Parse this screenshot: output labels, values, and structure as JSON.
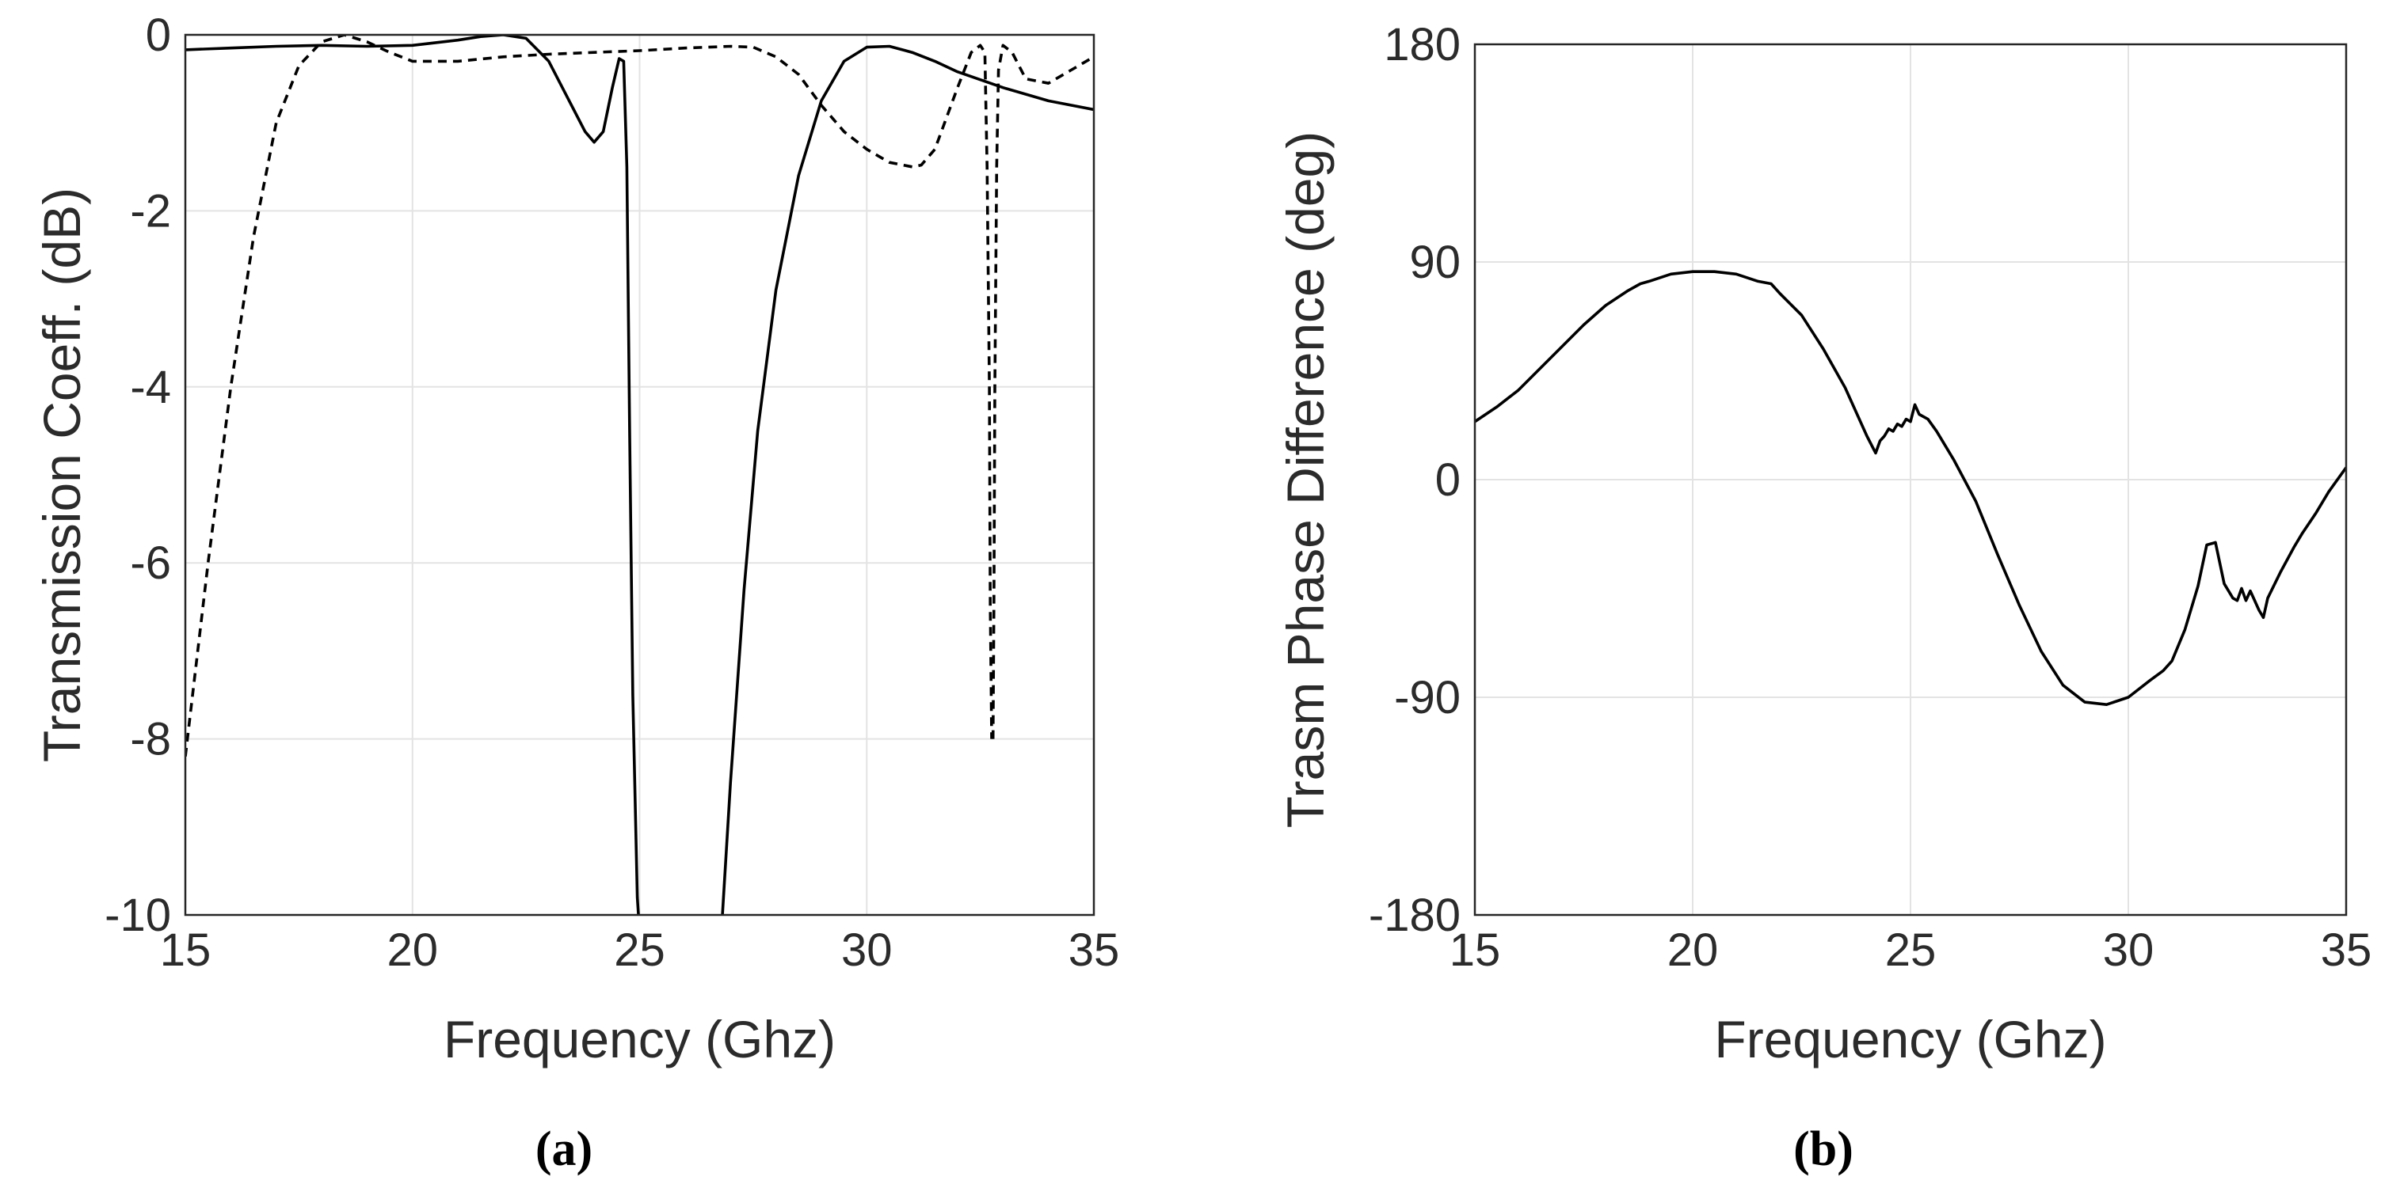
{
  "chart_data": [
    {
      "type": "line",
      "panel_label": "(a)",
      "title": "",
      "xlabel": "Frequency (Ghz)",
      "ylabel": "Transmission Coeff. (dB)",
      "xlim": [
        15,
        35
      ],
      "ylim": [
        -10,
        0
      ],
      "xticks": [
        15,
        20,
        25,
        30,
        35
      ],
      "yticks": [
        -10,
        -8,
        -6,
        -4,
        -2,
        0
      ],
      "grid": true,
      "series": [
        {
          "name": "solid",
          "style": "solid",
          "x": [
            15,
            16,
            17,
            18,
            19,
            20,
            21,
            21.5,
            22,
            22.5,
            23,
            23.5,
            23.8,
            24,
            24.2,
            24.4,
            24.55,
            24.65,
            24.72,
            24.78,
            24.85,
            24.95,
            25
          ],
          "y": [
            -0.17,
            -0.15,
            -0.13,
            -0.12,
            -0.13,
            -0.12,
            -0.06,
            -0.02,
            0,
            -0.04,
            -0.3,
            -0.8,
            -1.1,
            -1.22,
            -1.1,
            -0.6,
            -0.27,
            -0.3,
            -1.5,
            -4.5,
            -7.5,
            -9.8,
            -10.2
          ]
        },
        {
          "name": "solid",
          "style": "solid",
          "x": [
            26.8,
            27,
            27.3,
            27.6,
            28,
            28.5,
            29,
            29.5,
            30,
            30.5,
            31,
            31.5,
            32,
            33,
            34,
            35
          ],
          "y": [
            -10.2,
            -8.5,
            -6.3,
            -4.5,
            -2.9,
            -1.6,
            -0.75,
            -0.3,
            -0.14,
            -0.13,
            -0.2,
            -0.3,
            -0.42,
            -0.6,
            -0.75,
            -0.85
          ]
        },
        {
          "name": "dashed",
          "style": "dashed",
          "x": [
            15,
            15.5,
            16,
            16.5,
            17,
            17.5,
            18,
            18.5,
            19,
            19.5,
            20,
            21,
            22,
            23,
            24,
            25,
            26,
            27,
            27.5,
            28,
            28.5,
            29,
            29.5,
            30,
            30.5,
            31,
            31.2,
            31.5,
            32,
            32.3,
            32.5,
            32.6,
            32.65,
            32.7,
            32.72,
            32.75
          ],
          "y": [
            -8.2,
            -6,
            -4,
            -2.3,
            -1,
            -0.35,
            -0.08,
            0,
            -0.08,
            -0.2,
            -0.3,
            -0.3,
            -0.25,
            -0.22,
            -0.2,
            -0.18,
            -0.15,
            -0.13,
            -0.14,
            -0.25,
            -0.45,
            -0.8,
            -1.1,
            -1.3,
            -1.45,
            -1.5,
            -1.48,
            -1.3,
            -0.6,
            -0.2,
            -0.12,
            -0.2,
            -1.5,
            -4,
            -6.5,
            -8
          ]
        },
        {
          "name": "dashed",
          "style": "dashed",
          "x": [
            32.78,
            32.8,
            32.82,
            32.86,
            32.9,
            33,
            33.2,
            33.5,
            34,
            34.5,
            35
          ],
          "y": [
            -8,
            -6.5,
            -4,
            -1.5,
            -0.4,
            -0.12,
            -0.2,
            -0.5,
            -0.55,
            -0.4,
            -0.25
          ]
        }
      ]
    },
    {
      "type": "line",
      "panel_label": "(b)",
      "title": "",
      "xlabel": "Frequency (Ghz)",
      "ylabel": "Trasm Phase Difference (deg)",
      "xlim": [
        15,
        35
      ],
      "ylim": [
        -180,
        180
      ],
      "xticks": [
        15,
        20,
        25,
        30,
        35
      ],
      "yticks": [
        -180,
        -90,
        0,
        90,
        180
      ],
      "grid": true,
      "series": [
        {
          "name": "phase difference",
          "style": "solid",
          "x": [
            15,
            15.5,
            16,
            16.5,
            17,
            17.5,
            18,
            18.5,
            18.8,
            19,
            19.5,
            20,
            20.5,
            21,
            21.5,
            21.8,
            22,
            22.5,
            23,
            23.5,
            24,
            24.2,
            24.3,
            24.4,
            24.5,
            24.6,
            24.7,
            24.8,
            24.9,
            25,
            25.1,
            25.2,
            25.4,
            25.6,
            26,
            26.5,
            27,
            27.5,
            28,
            28.5,
            29,
            29.5,
            30,
            30.5,
            30.8,
            31,
            31.3,
            31.6,
            31.8,
            32,
            32.2,
            32.4,
            32.5,
            32.6,
            32.7,
            32.8,
            32.9,
            33,
            33.1,
            33.2,
            33.5,
            33.8,
            34,
            34.3,
            34.6,
            35
          ],
          "y": [
            24,
            30,
            37,
            46,
            55,
            64,
            72,
            78,
            81,
            82,
            85,
            86,
            86,
            85,
            82,
            81,
            77,
            68,
            54,
            38,
            18,
            11,
            16,
            18,
            21,
            20,
            23,
            22,
            25,
            24,
            31,
            27,
            25,
            20,
            8,
            -9,
            -31,
            -52,
            -71,
            -85,
            -92,
            -93,
            -90,
            -83,
            -79,
            -75,
            -62,
            -44,
            -27,
            -26,
            -43,
            -49,
            -50,
            -45,
            -50,
            -46,
            -50,
            -54,
            -57,
            -49,
            -38,
            -28,
            -22,
            -14,
            -5,
            5
          ]
        }
      ]
    }
  ]
}
